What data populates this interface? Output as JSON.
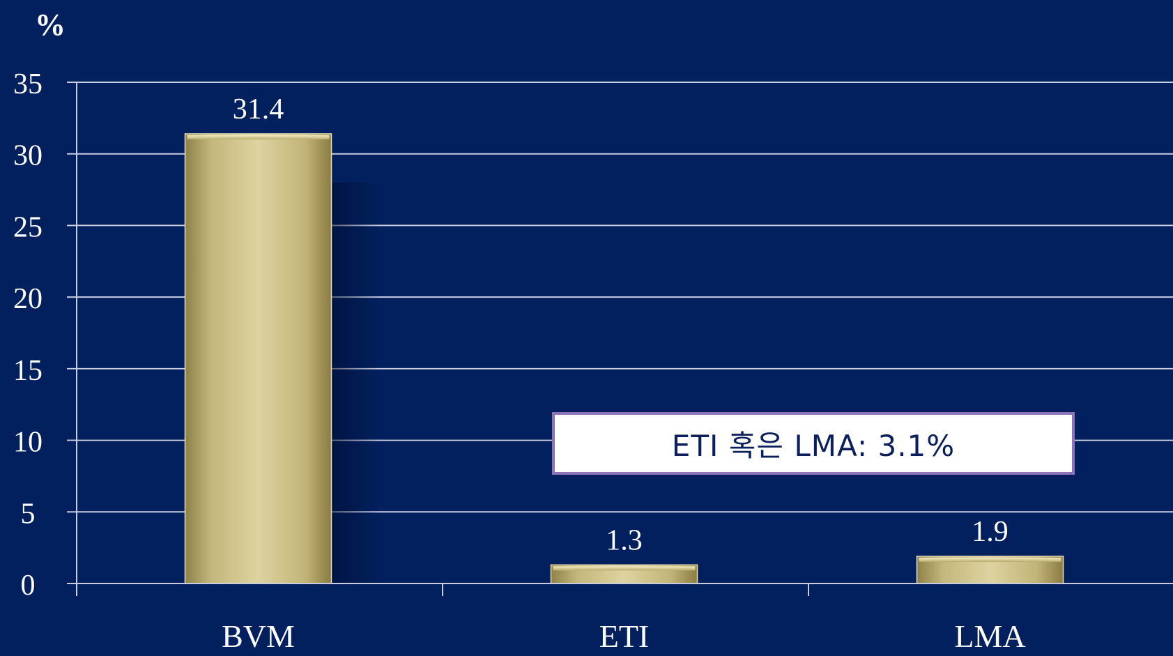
{
  "chart_data": {
    "type": "bar",
    "ylabel": "%",
    "categories": [
      "BVM",
      "ETI",
      "LMA"
    ],
    "values": [
      31.4,
      1.3,
      1.9
    ],
    "data_labels": [
      "31.4",
      "1.3",
      "1.9"
    ],
    "ylim": [
      0,
      35
    ],
    "yticks": [
      0,
      5,
      10,
      15,
      20,
      25,
      30,
      35
    ],
    "grid": true,
    "legend": "none",
    "annotation": "ETI 혹은 LMA: 3.1%",
    "colors": {
      "background": "#02205e",
      "bar": "#cbbf86",
      "bar_light": "#ded3a1",
      "bar_dark": "#9c8d52",
      "grid": "#c9cde0",
      "text": "#ffffff",
      "callout_border": "#8b74b8",
      "callout_text": "#0b1f5c"
    }
  }
}
